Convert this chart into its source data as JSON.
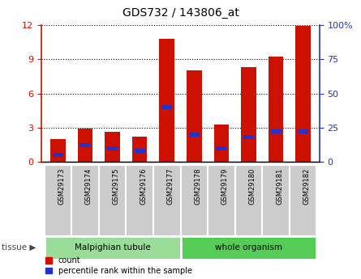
{
  "title": "GDS732 / 143806_at",
  "samples": [
    "GSM29173",
    "GSM29174",
    "GSM29175",
    "GSM29176",
    "GSM29177",
    "GSM29178",
    "GSM29179",
    "GSM29180",
    "GSM29181",
    "GSM29182"
  ],
  "counts": [
    2.0,
    2.9,
    2.6,
    2.2,
    10.8,
    8.0,
    3.3,
    8.3,
    9.2,
    11.9
  ],
  "percentiles": [
    5,
    12,
    10,
    8,
    40,
    20,
    10,
    18,
    22,
    22
  ],
  "ylim_left": [
    0,
    12
  ],
  "ylim_right": [
    0,
    100
  ],
  "yticks_left": [
    0,
    3,
    6,
    9,
    12
  ],
  "yticks_right": [
    0,
    25,
    50,
    75,
    100
  ],
  "groups": [
    {
      "label": "Malpighian tubule",
      "indices": [
        0,
        1,
        2,
        3,
        4
      ],
      "color": "#99dd99"
    },
    {
      "label": "whole organism",
      "indices": [
        5,
        6,
        7,
        8,
        9
      ],
      "color": "#55cc55"
    }
  ],
  "bar_color_count": "#cc1100",
  "bar_color_pct": "#2233cc",
  "bar_width": 0.55,
  "grid_color": "#000000",
  "grid_style": "dotted",
  "bg_plot": "#ffffff",
  "bg_xtick": "#cccccc",
  "left_tick_color": "#cc1100",
  "right_tick_color": "#2233cc",
  "legend_count_label": "count",
  "legend_pct_label": "percentile rank within the sample"
}
